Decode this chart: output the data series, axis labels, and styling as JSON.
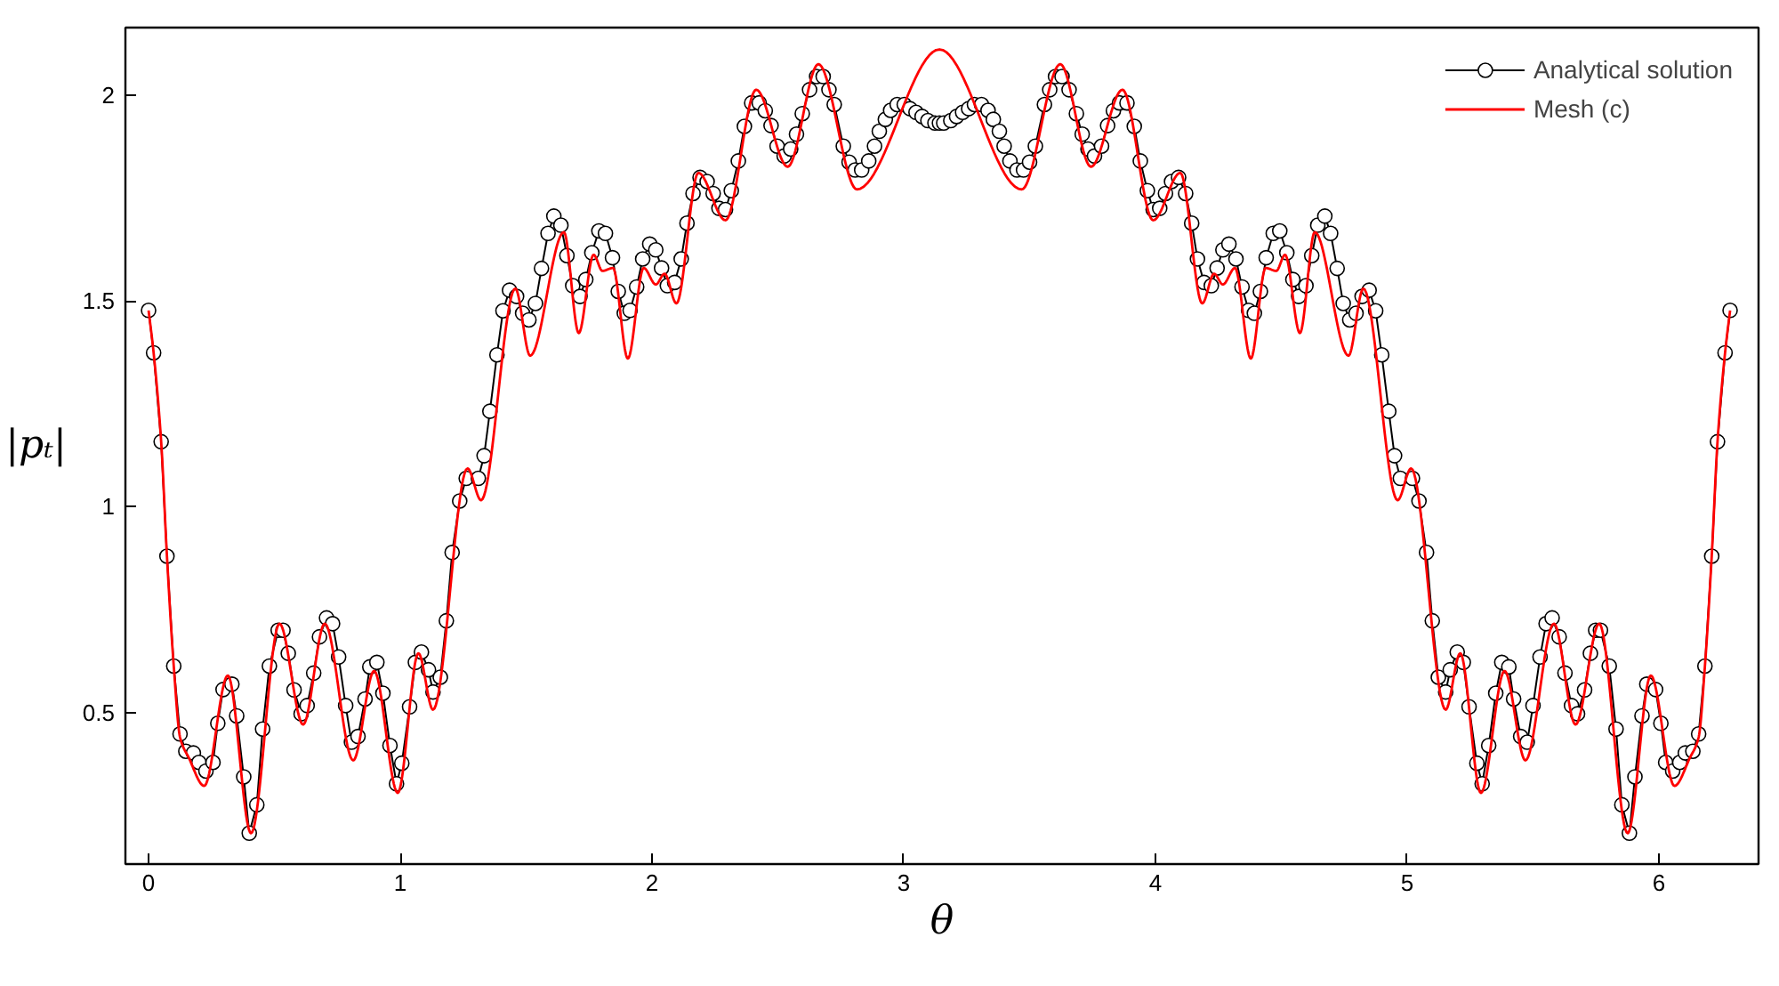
{
  "chart_data": {
    "type": "line",
    "xlabel": "θ",
    "ylabel": "|pₜ|",
    "xlim": [
      -0.092,
      6.396
    ],
    "ylim": [
      0.132,
      2.164
    ],
    "xticks": [
      0,
      1,
      2,
      3,
      4,
      5,
      6
    ],
    "yticks": [
      0.5,
      1,
      1.5,
      2
    ],
    "grid": false,
    "legend": "top right",
    "series": [
      {
        "name": "Analytical solution",
        "color": "#000000",
        "marker": "circle",
        "x": [
          0,
          0.02,
          0.05,
          0.073,
          0.1,
          0.125,
          0.148,
          0.178,
          0.2,
          0.228,
          0.256,
          0.275,
          0.296,
          0.331,
          0.35,
          0.378,
          0.4,
          0.43,
          0.453,
          0.48,
          0.515,
          0.534,
          0.555,
          0.578,
          0.606,
          0.63,
          0.656,
          0.679,
          0.707,
          0.731,
          0.755,
          0.783,
          0.806,
          0.832,
          0.86,
          0.879,
          0.907,
          0.931,
          0.959,
          0.985,
          1.006,
          1.037,
          1.06,
          1.084,
          1.112,
          1.13,
          1.159,
          1.183,
          1.206,
          1.236,
          1.262,
          1.31,
          1.333,
          1.356,
          1.384,
          1.408,
          1.434,
          1.462,
          1.486,
          1.511,
          1.537,
          1.561,
          1.587,
          1.61,
          1.638,
          1.662,
          1.685,
          1.714,
          1.737,
          1.761,
          1.789,
          1.815,
          1.843,
          1.866,
          1.89,
          1.913,
          1.939,
          1.963,
          1.991,
          2.015,
          2.038,
          2.061,
          2.09,
          2.116,
          2.139,
          2.163,
          2.191,
          2.219,
          2.243,
          2.266,
          2.292,
          2.315,
          2.343,
          2.367,
          2.396,
          2.426,
          2.45,
          2.473,
          2.497,
          2.525,
          2.551,
          2.574,
          2.597,
          2.626,
          2.654,
          2.68,
          2.703,
          2.724,
          2.76,
          2.783,
          2.807,
          2.833,
          2.861,
          2.884,
          2.903,
          2.927,
          2.948,
          2.974,
          3.002,
          3.025,
          3.049,
          3.073,
          3.096,
          3.124,
          3.142,
          3.159,
          3.187,
          3.21,
          3.234,
          3.258,
          3.281,
          3.309,
          3.335,
          3.356,
          3.38,
          3.399,
          3.422,
          3.45,
          3.476,
          3.5,
          3.523,
          3.559,
          3.58,
          3.603,
          3.629,
          3.657,
          3.686,
          3.709,
          3.732,
          3.758,
          3.786,
          3.81,
          3.833,
          3.857,
          3.887,
          3.916,
          3.94,
          3.968,
          3.991,
          4.017,
          4.04,
          4.064,
          4.092,
          4.12,
          4.144,
          4.167,
          4.193,
          4.222,
          4.245,
          4.268,
          4.292,
          4.32,
          4.344,
          4.37,
          4.393,
          4.417,
          4.44,
          4.468,
          4.494,
          4.522,
          4.546,
          4.569,
          4.598,
          4.621,
          4.645,
          4.673,
          4.696,
          4.722,
          4.746,
          4.772,
          4.797,
          4.821,
          4.849,
          4.875,
          4.899,
          4.927,
          4.95,
          4.973,
          5.021,
          5.047,
          5.077,
          5.1,
          5.124,
          5.153,
          5.171,
          5.199,
          5.223,
          5.246,
          5.277,
          5.298,
          5.324,
          5.352,
          5.376,
          5.404,
          5.423,
          5.451,
          5.477,
          5.5,
          5.528,
          5.552,
          5.576,
          5.604,
          5.627,
          5.653,
          5.677,
          5.705,
          5.728,
          5.749,
          5.768,
          5.803,
          5.83,
          5.853,
          5.883,
          5.905,
          5.933,
          5.952,
          5.987,
          6.008,
          6.027,
          6.055,
          6.083,
          6.105,
          6.135,
          6.158,
          6.183,
          6.21,
          6.233,
          6.263,
          6.283
        ],
        "values": [
          1.477,
          1.374,
          1.158,
          0.88,
          0.613,
          0.448,
          0.406,
          0.402,
          0.379,
          0.358,
          0.379,
          0.474,
          0.556,
          0.569,
          0.492,
          0.344,
          0.207,
          0.276,
          0.46,
          0.613,
          0.7,
          0.7,
          0.644,
          0.555,
          0.497,
          0.517,
          0.596,
          0.684,
          0.73,
          0.716,
          0.635,
          0.517,
          0.428,
          0.442,
          0.533,
          0.611,
          0.622,
          0.547,
          0.42,
          0.327,
          0.377,
          0.514,
          0.622,
          0.647,
          0.604,
          0.55,
          0.586,
          0.723,
          0.889,
          1.014,
          1.069,
          1.069,
          1.124,
          1.232,
          1.369,
          1.476,
          1.526,
          1.511,
          1.47,
          1.454,
          1.494,
          1.579,
          1.664,
          1.706,
          1.684,
          1.61,
          1.537,
          1.511,
          1.552,
          1.617,
          1.67,
          1.664,
          1.605,
          1.523,
          1.47,
          1.477,
          1.534,
          1.602,
          1.638,
          1.624,
          1.58,
          1.537,
          1.545,
          1.602,
          1.689,
          1.761,
          1.8,
          1.79,
          1.761,
          1.725,
          1.722,
          1.768,
          1.84,
          1.924,
          1.981,
          1.981,
          1.962,
          1.926,
          1.876,
          1.852,
          1.869,
          1.905,
          1.955,
          2.013,
          2.045,
          2.045,
          2.013,
          1.977,
          1.876,
          1.837,
          1.818,
          1.818,
          1.84,
          1.876,
          1.912,
          1.941,
          1.963,
          1.977,
          1.977,
          1.967,
          1.958,
          1.948,
          1.938,
          1.932,
          1.932,
          1.932,
          1.938,
          1.948,
          1.958,
          1.967,
          1.977,
          1.977,
          1.963,
          1.941,
          1.912,
          1.876,
          1.84,
          1.818,
          1.818,
          1.837,
          1.876,
          1.977,
          2.013,
          2.045,
          2.045,
          2.013,
          1.955,
          1.905,
          1.869,
          1.852,
          1.876,
          1.926,
          1.962,
          1.981,
          1.981,
          1.924,
          1.84,
          1.768,
          1.722,
          1.725,
          1.761,
          1.79,
          1.8,
          1.761,
          1.689,
          1.602,
          1.545,
          1.537,
          1.58,
          1.624,
          1.638,
          1.602,
          1.534,
          1.477,
          1.47,
          1.523,
          1.605,
          1.664,
          1.67,
          1.617,
          1.552,
          1.511,
          1.537,
          1.61,
          1.684,
          1.706,
          1.664,
          1.579,
          1.494,
          1.454,
          1.47,
          1.511,
          1.526,
          1.476,
          1.369,
          1.232,
          1.124,
          1.069,
          1.069,
          1.014,
          0.889,
          0.723,
          0.586,
          0.55,
          0.604,
          0.647,
          0.622,
          0.514,
          0.377,
          0.327,
          0.42,
          0.547,
          0.622,
          0.611,
          0.533,
          0.442,
          0.428,
          0.517,
          0.635,
          0.716,
          0.73,
          0.684,
          0.596,
          0.517,
          0.497,
          0.555,
          0.644,
          0.7,
          0.7,
          0.613,
          0.46,
          0.276,
          0.207,
          0.344,
          0.492,
          0.569,
          0.556,
          0.474,
          0.379,
          0.358,
          0.379,
          0.402,
          0.406,
          0.448,
          0.613,
          0.88,
          1.158,
          1.374,
          1.477
        ]
      },
      {
        "name": "Mesh (c)",
        "color": "#ff0000",
        "marker": "none",
        "x": [
          0,
          0.02,
          0.05,
          0.073,
          0.1,
          0.125,
          0.16,
          0.221,
          0.315,
          0.407,
          0.52,
          0.614,
          0.7,
          0.813,
          0.896,
          0.99,
          1.072,
          1.13,
          1.267,
          1.321,
          1.457,
          1.516,
          1.65,
          1.709,
          1.768,
          1.803,
          1.845,
          1.904,
          1.967,
          2.015,
          2.05,
          2.097,
          2.184,
          2.292,
          2.414,
          2.539,
          2.661,
          2.814,
          3.142,
          3.469,
          3.622,
          3.744,
          3.869,
          3.991,
          4.099,
          4.186,
          4.233,
          4.268,
          4.316,
          4.379,
          4.438,
          4.48,
          4.515,
          4.574,
          4.633,
          4.767,
          4.826,
          4.962,
          5.016,
          5.153,
          5.211,
          5.293,
          5.387,
          5.47,
          5.583,
          5.669,
          5.763,
          5.876,
          5.968,
          6.062,
          6.123,
          6.158,
          6.183,
          6.21,
          6.233,
          6.263,
          6.283
        ],
        "values": [
          1.477,
          1.374,
          1.158,
          0.88,
          0.613,
          0.44,
          0.39,
          0.322,
          0.59,
          0.207,
          0.716,
          0.471,
          0.716,
          0.384,
          0.601,
          0.305,
          0.644,
          0.507,
          1.093,
          1.016,
          1.53,
          1.367,
          1.667,
          1.422,
          1.612,
          1.573,
          1.58,
          1.36,
          1.58,
          1.54,
          1.566,
          1.494,
          1.811,
          1.696,
          2.013,
          1.826,
          2.075,
          1.771,
          2.111,
          1.771,
          2.075,
          1.826,
          2.013,
          1.696,
          1.811,
          1.494,
          1.566,
          1.54,
          1.58,
          1.36,
          1.58,
          1.573,
          1.612,
          1.422,
          1.667,
          1.367,
          1.53,
          1.016,
          1.093,
          0.507,
          0.644,
          0.305,
          0.601,
          0.384,
          0.716,
          0.471,
          0.716,
          0.207,
          0.59,
          0.322,
          0.39,
          0.44,
          0.613,
          0.88,
          1.158,
          1.374,
          1.477
        ]
      }
    ]
  }
}
